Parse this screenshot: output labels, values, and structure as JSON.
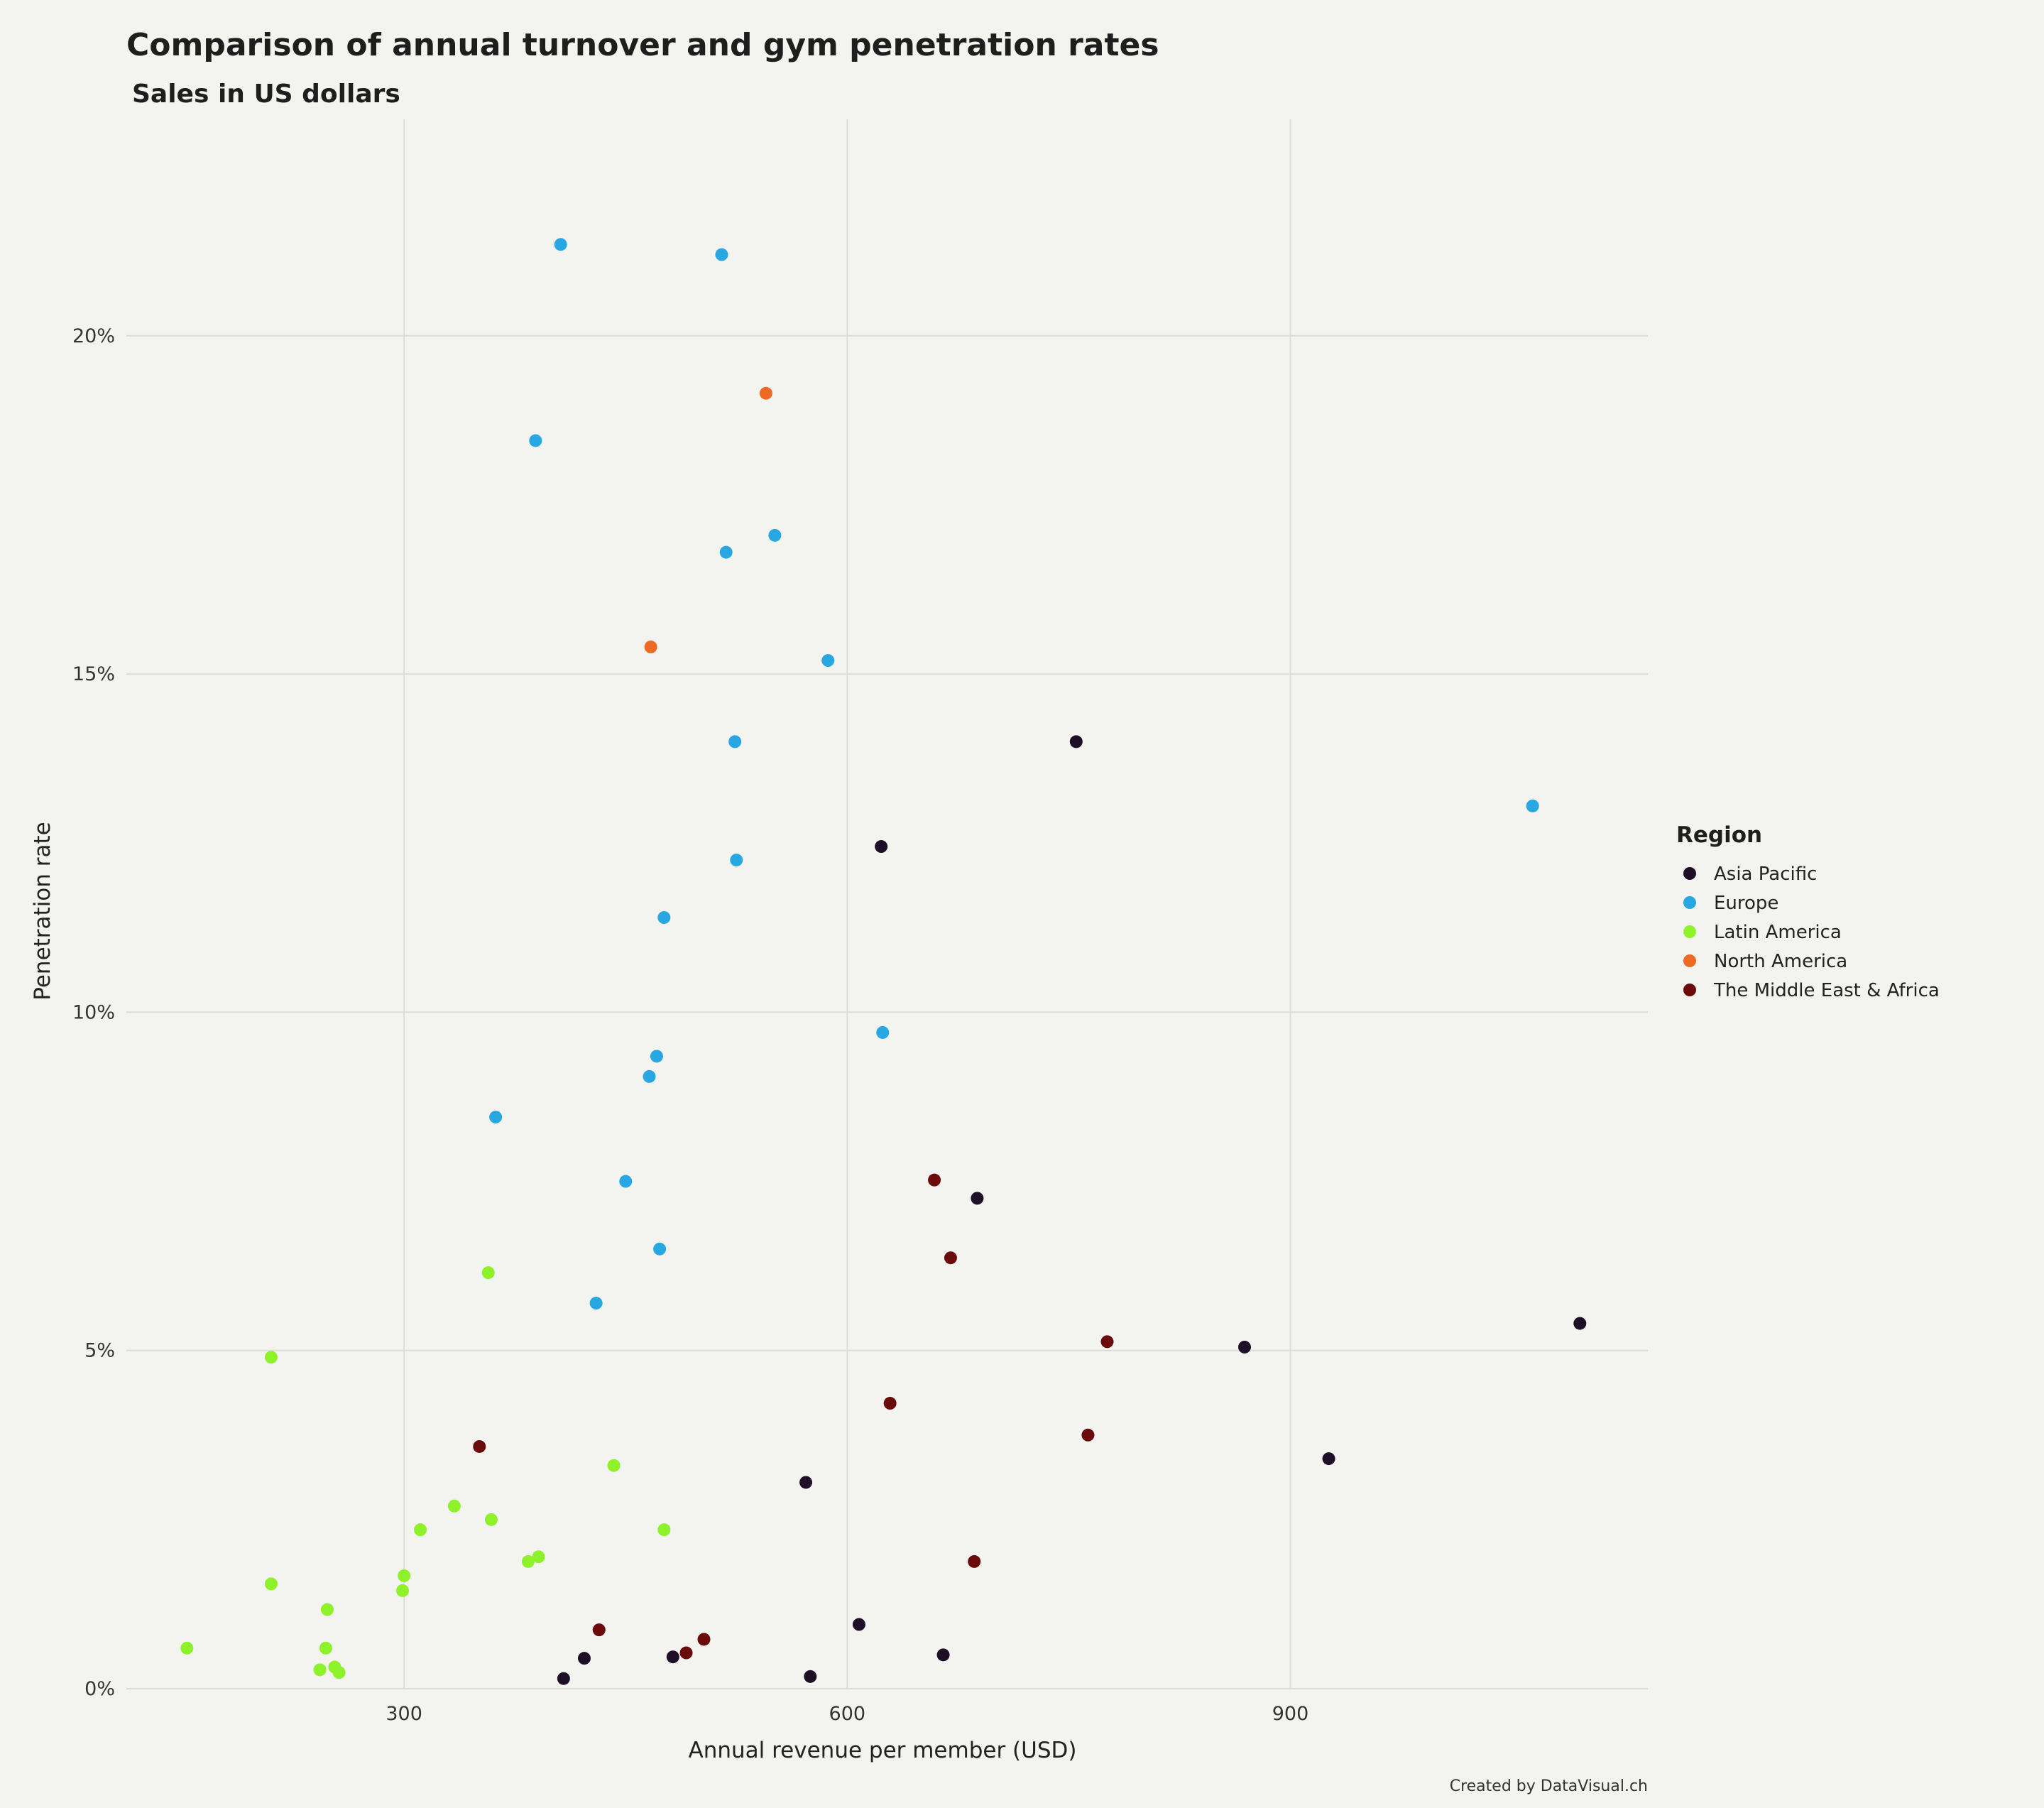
{
  "chart_data": {
    "type": "scatter",
    "title": "Comparison of annual turnover and gym penetration rates",
    "subtitle": "Sales in US dollars",
    "xlabel": "Annual revenue per member (USD)",
    "ylabel": "Penetration rate",
    "caption": "Created by DataVisual.ch",
    "xlim": [
      112,
      1142
    ],
    "ylim": [
      0,
      23.2
    ],
    "x_ticks": [
      {
        "value": 300,
        "label": "300"
      },
      {
        "value": 600,
        "label": "600"
      },
      {
        "value": 900,
        "label": "900"
      }
    ],
    "y_ticks": [
      {
        "value": 0,
        "label": "0%"
      },
      {
        "value": 5,
        "label": "5%"
      },
      {
        "value": 10,
        "label": "10%"
      },
      {
        "value": 15,
        "label": "15%"
      },
      {
        "value": 20,
        "label": "20%"
      }
    ],
    "grid": true,
    "legend": {
      "title": "Region",
      "position": "right"
    },
    "series": [
      {
        "name": "Asia Pacific",
        "color": "#1e0f27",
        "points": [
          {
            "x": 755,
            "y": 14.0
          },
          {
            "x": 623,
            "y": 12.45
          },
          {
            "x": 688,
            "y": 7.25
          },
          {
            "x": 1096,
            "y": 5.4
          },
          {
            "x": 869,
            "y": 5.05
          },
          {
            "x": 926,
            "y": 3.4
          },
          {
            "x": 572,
            "y": 3.05
          },
          {
            "x": 608,
            "y": 0.95
          },
          {
            "x": 665,
            "y": 0.5
          },
          {
            "x": 422,
            "y": 0.45
          },
          {
            "x": 482,
            "y": 0.47
          },
          {
            "x": 575,
            "y": 0.18
          },
          {
            "x": 408,
            "y": 0.15
          }
        ]
      },
      {
        "name": "Europe",
        "color": "#29a7e2",
        "points": [
          {
            "x": 406,
            "y": 21.35
          },
          {
            "x": 515,
            "y": 21.2
          },
          {
            "x": 389,
            "y": 18.45
          },
          {
            "x": 551,
            "y": 17.05
          },
          {
            "x": 518,
            "y": 16.8
          },
          {
            "x": 587,
            "y": 15.2
          },
          {
            "x": 524,
            "y": 14.0
          },
          {
            "x": 1064,
            "y": 13.05
          },
          {
            "x": 525,
            "y": 12.25
          },
          {
            "x": 476,
            "y": 11.4
          },
          {
            "x": 624,
            "y": 9.7
          },
          {
            "x": 471,
            "y": 9.35
          },
          {
            "x": 466,
            "y": 9.05
          },
          {
            "x": 362,
            "y": 8.45
          },
          {
            "x": 450,
            "y": 7.5
          },
          {
            "x": 473,
            "y": 6.5
          },
          {
            "x": 430,
            "y": 5.7
          }
        ]
      },
      {
        "name": "Latin America",
        "color": "#8ef22a",
        "points": [
          {
            "x": 357,
            "y": 6.15
          },
          {
            "x": 210,
            "y": 4.9
          },
          {
            "x": 442,
            "y": 3.3
          },
          {
            "x": 334,
            "y": 2.7
          },
          {
            "x": 359,
            "y": 2.5
          },
          {
            "x": 311,
            "y": 2.35
          },
          {
            "x": 476,
            "y": 2.35
          },
          {
            "x": 391,
            "y": 1.95
          },
          {
            "x": 384,
            "y": 1.88
          },
          {
            "x": 300,
            "y": 1.67
          },
          {
            "x": 210,
            "y": 1.55
          },
          {
            "x": 299,
            "y": 1.45
          },
          {
            "x": 248,
            "y": 1.17
          },
          {
            "x": 247,
            "y": 0.6
          },
          {
            "x": 153,
            "y": 0.6
          },
          {
            "x": 253,
            "y": 0.32
          },
          {
            "x": 243,
            "y": 0.28
          },
          {
            "x": 256,
            "y": 0.24
          }
        ]
      },
      {
        "name": "North America",
        "color": "#ee6a23",
        "points": [
          {
            "x": 545,
            "y": 19.15
          },
          {
            "x": 467,
            "y": 15.4
          }
        ]
      },
      {
        "name": "The Middle East & Africa",
        "color": "#6b0a0a",
        "points": [
          {
            "x": 659,
            "y": 7.52
          },
          {
            "x": 670,
            "y": 6.37
          },
          {
            "x": 776,
            "y": 5.13
          },
          {
            "x": 629,
            "y": 4.22
          },
          {
            "x": 763,
            "y": 3.75
          },
          {
            "x": 351,
            "y": 3.58
          },
          {
            "x": 686,
            "y": 1.88
          },
          {
            "x": 432,
            "y": 0.87
          },
          {
            "x": 503,
            "y": 0.73
          },
          {
            "x": 491,
            "y": 0.53
          }
        ]
      }
    ]
  }
}
